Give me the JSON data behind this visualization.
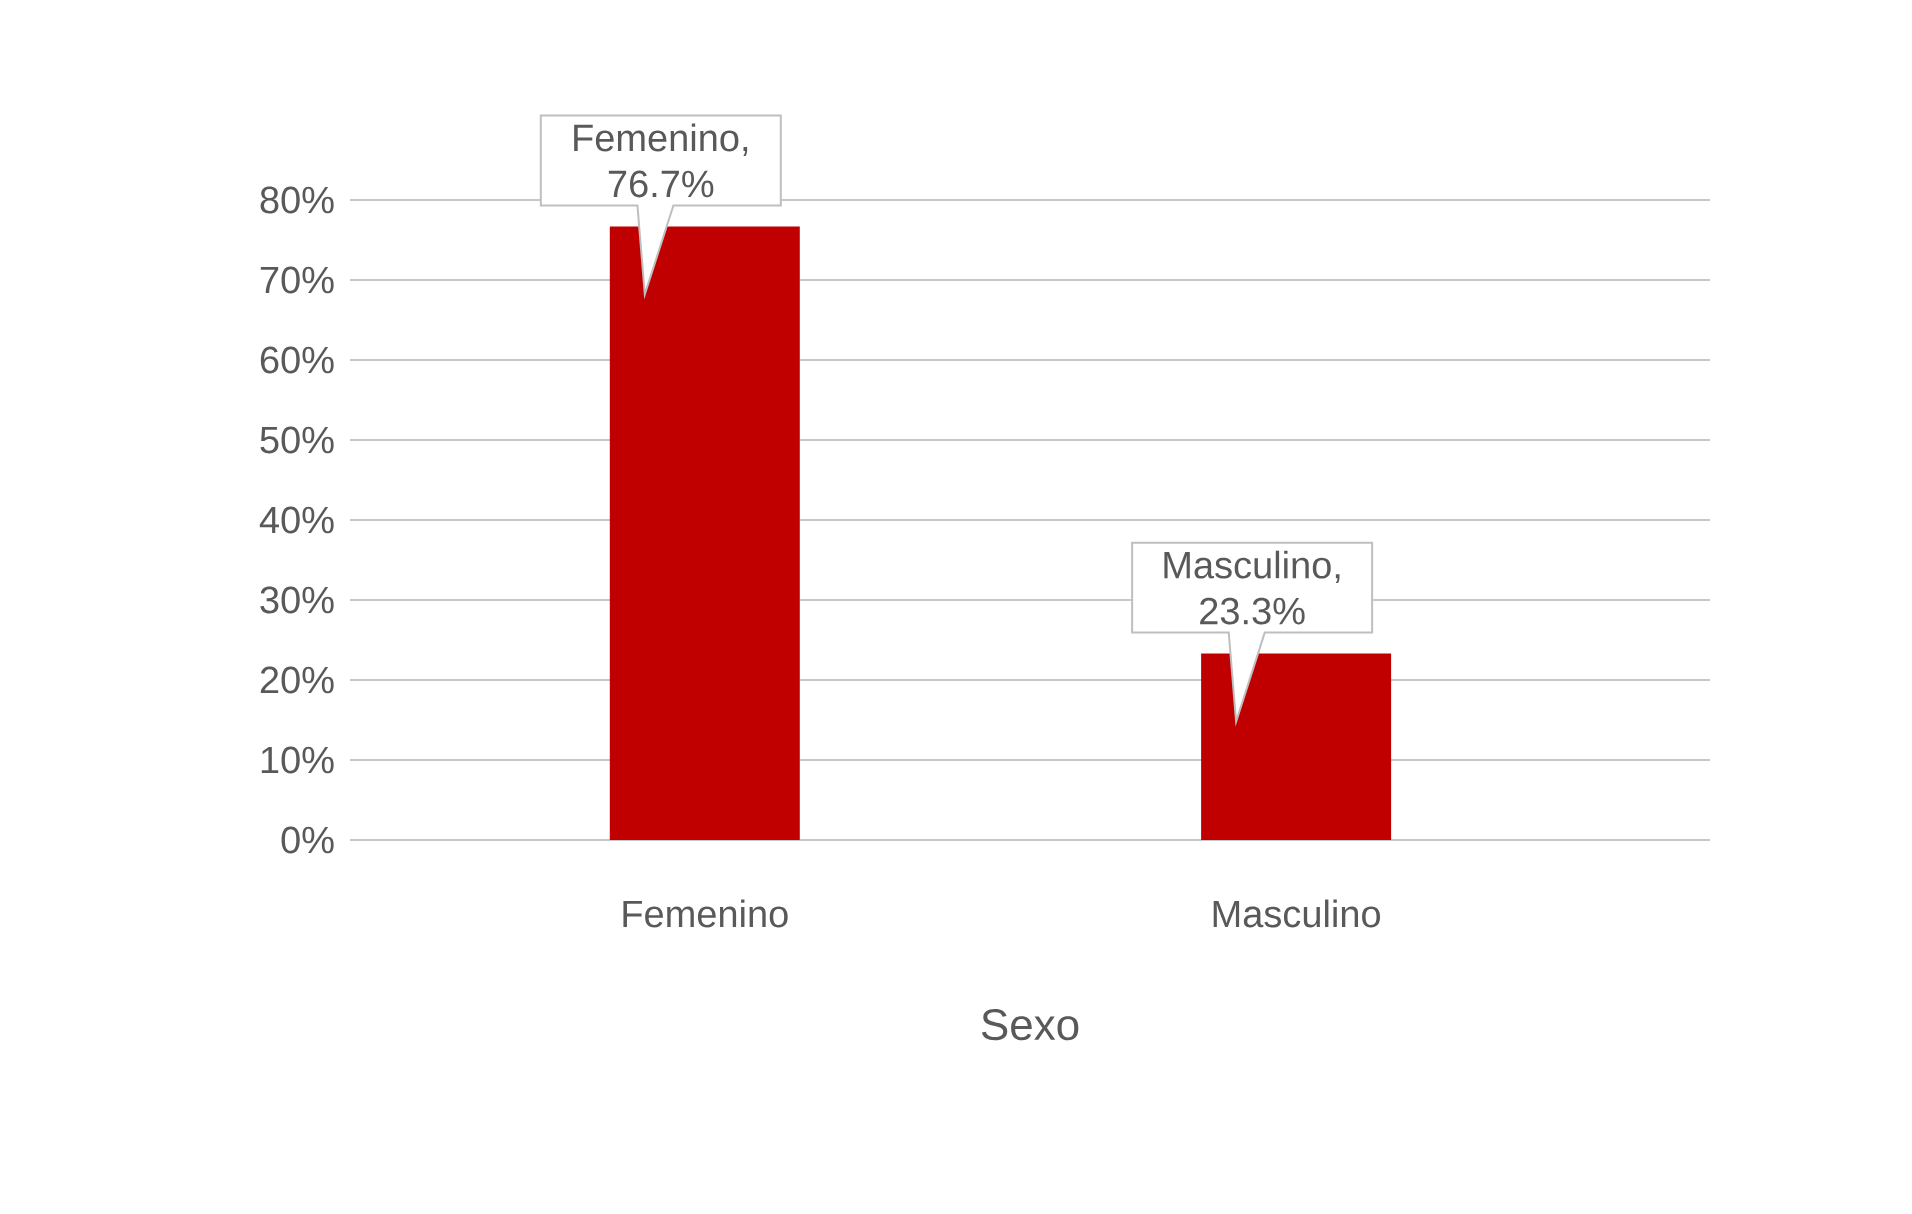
{
  "chart_data": {
    "type": "bar",
    "xlabel": "Sexo",
    "categories": [
      "Femenino",
      "Masculino"
    ],
    "values": [
      76.7,
      23.3
    ],
    "color": "#c00000",
    "value_labels": [
      "Femenino, 76.7%",
      "Masculino, 23.3%"
    ],
    "ylim": [
      0,
      80
    ],
    "yticks": [
      {
        "value": 0,
        "label": "0%"
      },
      {
        "value": 10,
        "label": "10%"
      },
      {
        "value": 20,
        "label": "20%"
      },
      {
        "value": 30,
        "label": "30%"
      },
      {
        "value": 40,
        "label": "40%"
      },
      {
        "value": 50,
        "label": "50%"
      },
      {
        "value": 60,
        "label": "60%"
      },
      {
        "value": 70,
        "label": "70%"
      },
      {
        "value": 80,
        "label": "80%"
      }
    ],
    "grid": "y"
  }
}
